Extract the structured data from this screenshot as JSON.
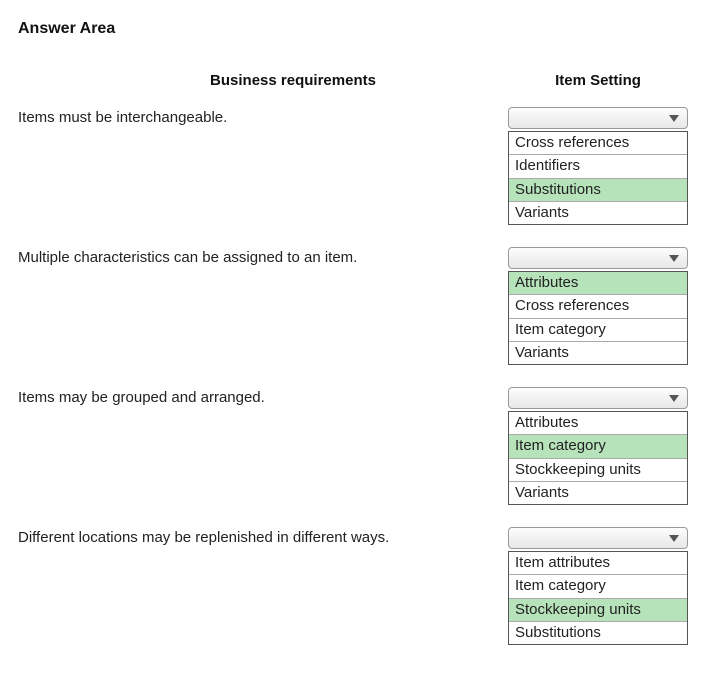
{
  "title": "Answer Area",
  "headers": {
    "left": "Business requirements",
    "right": "Item Setting"
  },
  "colors": {
    "highlight_bg": "#b7e3bb",
    "border": "#555555",
    "dropdown_border": "#9a9a9a",
    "text": "#222222"
  },
  "rows": [
    {
      "requirement": "Items must be interchangeable.",
      "options": [
        {
          "label": "Cross references",
          "selected": false
        },
        {
          "label": "Identifiers",
          "selected": false
        },
        {
          "label": "Substitutions",
          "selected": true
        },
        {
          "label": "Variants",
          "selected": false
        }
      ]
    },
    {
      "requirement": "Multiple characteristics can be assigned to an item.",
      "options": [
        {
          "label": "Attributes",
          "selected": true
        },
        {
          "label": "Cross references",
          "selected": false
        },
        {
          "label": "Item category",
          "selected": false
        },
        {
          "label": "Variants",
          "selected": false
        }
      ]
    },
    {
      "requirement": "Items may be grouped and arranged.",
      "options": [
        {
          "label": "Attributes",
          "selected": false
        },
        {
          "label": "Item category",
          "selected": true
        },
        {
          "label": "Stockkeeping units",
          "selected": false
        },
        {
          "label": "Variants",
          "selected": false
        }
      ]
    },
    {
      "requirement": "Different locations may be replenished in different ways.",
      "options": [
        {
          "label": "Item attributes",
          "selected": false
        },
        {
          "label": "Item category",
          "selected": false
        },
        {
          "label": "Stockkeeping units",
          "selected": true
        },
        {
          "label": "Substitutions",
          "selected": false
        }
      ]
    }
  ]
}
